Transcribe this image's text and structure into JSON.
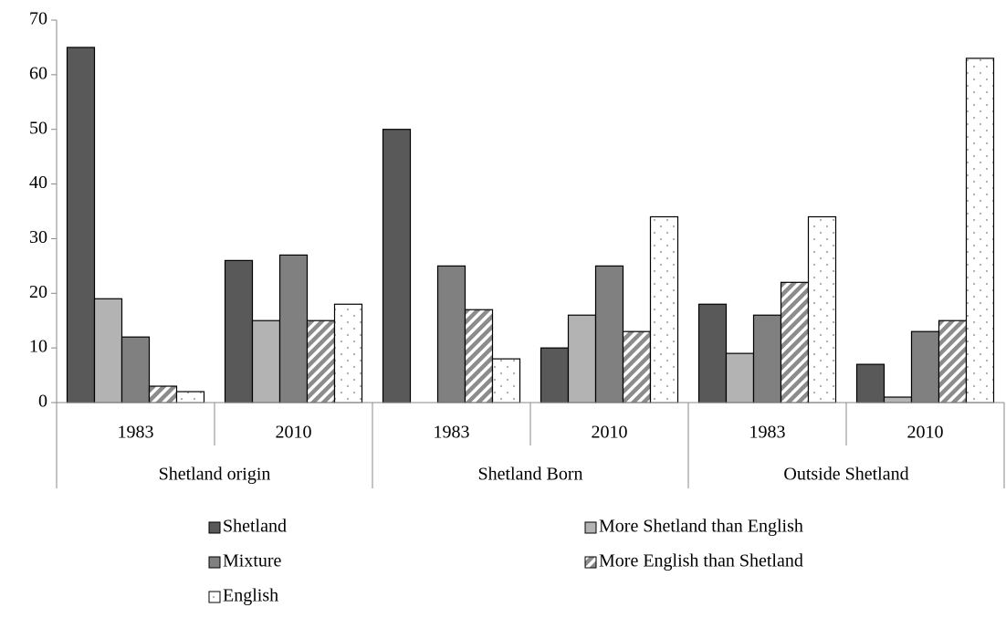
{
  "chart_data": {
    "type": "bar",
    "categories": [
      "1983",
      "2010",
      "1983",
      "2010",
      "1983",
      "2010"
    ],
    "groups": [
      "Shetland origin",
      "Shetland Born",
      "Outside Shetland"
    ],
    "series": [
      {
        "name": "Shetland",
        "color": "#595959",
        "values": [
          65,
          26,
          50,
          10,
          18,
          7
        ]
      },
      {
        "name": "More Shetland than English",
        "color": "#b3b3b3",
        "values": [
          19,
          15,
          null,
          16,
          9,
          1
        ]
      },
      {
        "name": "Mixture",
        "color": "#808080",
        "values": [
          12,
          27,
          25,
          25,
          16,
          13
        ]
      },
      {
        "name": "More English than Shetland",
        "color": "#8c8c8c",
        "pattern": "diagonal-stripes",
        "values": [
          3,
          15,
          17,
          13,
          22,
          15
        ]
      },
      {
        "name": "English",
        "color": "#ffffff",
        "pattern": "dots",
        "values": [
          2,
          18,
          8,
          34,
          34,
          63
        ]
      }
    ],
    "ylim": [
      0,
      70
    ],
    "yticks": [
      0,
      10,
      20,
      30,
      40,
      50,
      60,
      70
    ]
  }
}
